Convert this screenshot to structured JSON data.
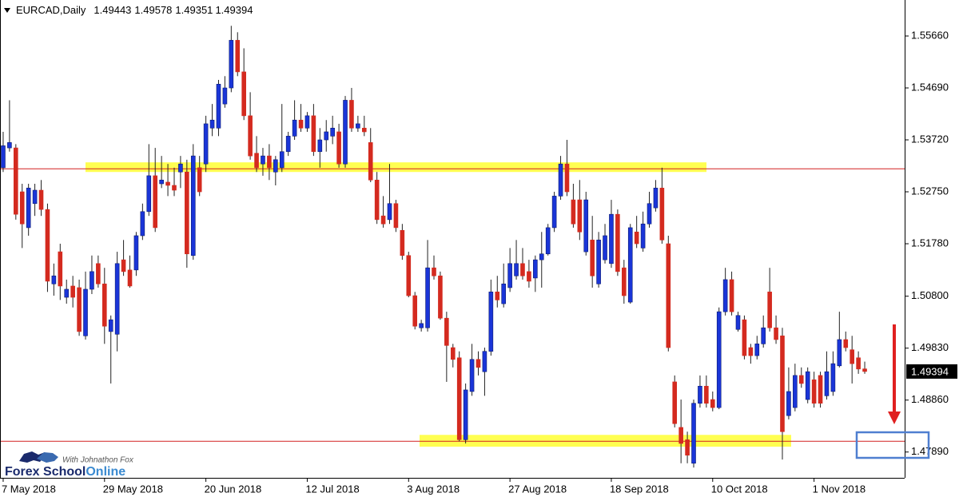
{
  "chart_data": {
    "type": "candlestick",
    "title": "EURCAD,Daily",
    "header_values": [
      1.49443,
      1.49578,
      1.49351,
      1.49394
    ],
    "last_price": 1.49394,
    "up_color": "#1a35d8",
    "down_color": "#d42a1f",
    "ylim": [
      1.47408,
      1.56332
    ],
    "yticks": [
      {
        "value": 1.5566,
        "label": "1.55660"
      },
      {
        "value": 1.5469,
        "label": "1.54690"
      },
      {
        "value": 1.5372,
        "label": "1.53720"
      },
      {
        "value": 1.5275,
        "label": "1.52750"
      },
      {
        "value": 1.5178,
        "label": "1.51780"
      },
      {
        "value": 1.508,
        "label": "1.50800"
      },
      {
        "value": 1.4983,
        "label": "1.49830"
      },
      {
        "value": 1.4886,
        "label": "1.48860"
      },
      {
        "value": 1.4789,
        "label": "1.47890"
      }
    ],
    "levels": [
      1.5318,
      1.4809
    ],
    "zones": [
      [
        1.5312,
        1.533
      ],
      [
        1.4799,
        1.4821
      ]
    ],
    "categories": [
      "7 May 2018",
      null,
      null,
      null,
      null,
      null,
      null,
      null,
      null,
      null,
      null,
      null,
      null,
      null,
      null,
      null,
      "29 May 2018",
      null,
      null,
      null,
      null,
      null,
      null,
      null,
      null,
      null,
      null,
      null,
      null,
      null,
      null,
      null,
      "20 Jun 2018",
      null,
      null,
      null,
      null,
      null,
      null,
      null,
      null,
      null,
      null,
      null,
      null,
      null,
      null,
      null,
      "12 Jul 2018",
      null,
      null,
      null,
      null,
      null,
      null,
      null,
      null,
      null,
      null,
      null,
      null,
      null,
      null,
      null,
      "3 Aug 2018",
      null,
      null,
      null,
      null,
      null,
      null,
      null,
      null,
      null,
      null,
      null,
      null,
      null,
      null,
      null,
      "27 Aug 2018",
      null,
      null,
      null,
      null,
      null,
      null,
      null,
      null,
      null,
      null,
      null,
      null,
      null,
      null,
      null,
      "18 Sep 2018",
      null,
      null,
      null,
      null,
      null,
      null,
      null,
      null,
      null,
      null,
      null,
      null,
      null,
      null,
      null,
      "10 Oct 2018",
      null,
      null,
      null,
      null,
      null,
      null,
      null,
      null,
      null,
      null,
      null,
      null,
      null,
      null,
      null,
      "1 Nov 2018",
      null,
      null,
      null,
      null,
      null,
      null,
      null,
      null
    ],
    "open": [
      1.532,
      1.5357,
      1.5357,
      1.5275,
      1.5208,
      1.5253,
      1.5278,
      1.5242,
      1.5103,
      1.5163,
      1.5078,
      1.5099,
      1.5096,
      1.5006,
      1.5093,
      1.5141,
      1.5103,
      1.5014,
      1.5009,
      1.5148,
      1.5129,
      1.5129,
      1.5193,
      1.5238,
      1.5305,
      1.529,
      1.5293,
      1.5287,
      1.5312,
      1.5312,
      1.5156,
      1.532,
      1.5327,
      1.5394,
      1.5394,
      1.5439,
      1.5469,
      1.5558,
      1.5499,
      1.5417,
      1.5347,
      1.5327,
      1.5342,
      1.5312,
      1.532,
      1.535,
      1.5379,
      1.5409,
      1.5394,
      1.5417,
      1.535,
      1.5372,
      1.5379,
      1.5387,
      1.5327,
      1.5446,
      1.5394,
      1.5394,
      1.5367,
      1.5297,
      1.523,
      1.5223,
      1.5253,
      1.5203,
      1.5156,
      1.5081,
      1.5021,
      1.5021,
      1.5133,
      1.5118,
      1.5039,
      1.4984,
      1.4965,
      1.4812,
      1.4902,
      1.4962,
      1.4939,
      1.4977,
      1.5088,
      1.5066,
      1.5096,
      1.5118,
      1.5141,
      1.5126,
      1.5114,
      1.5148,
      1.5159,
      1.5208,
      1.5267,
      1.5327,
      1.526,
      1.526,
      1.5163,
      1.5185,
      1.5103,
      1.5148,
      1.5141,
      1.5233,
      1.5133,
      1.5069,
      1.52,
      1.517,
      1.5215,
      1.5245,
      1.5282,
      1.5178,
      1.492,
      1.4835,
      1.4812,
      1.4768,
      1.488,
      1.4912,
      1.4887,
      1.4872,
      1.5051,
      1.5111,
      1.5018,
      1.5036,
      1.4984,
      1.4969,
      1.4991,
      1.5088,
      1.5021,
      1.5006,
      1.4857,
      1.4872,
      1.4932,
      1.4887,
      1.4924,
      1.4932,
      1.4894,
      1.4902,
      1.495,
      1.4999,
      1.498,
      1.4965,
      1.49443
    ],
    "high": [
      1.5387,
      1.5446,
      1.5364,
      1.529,
      1.529,
      1.529,
      1.5297,
      1.5253,
      1.5141,
      1.5178,
      1.5111,
      1.5118,
      1.5111,
      1.5126,
      1.5156,
      1.5156,
      1.5133,
      1.5044,
      1.5163,
      1.5185,
      1.5156,
      1.52,
      1.5253,
      1.5364,
      1.5357,
      1.5342,
      1.5327,
      1.532,
      1.5342,
      1.5335,
      1.5364,
      1.5342,
      1.5417,
      1.5439,
      1.5484,
      1.5491,
      1.5585,
      1.5573,
      1.5543,
      1.5461,
      1.5379,
      1.5357,
      1.5364,
      1.5342,
      1.5439,
      1.5387,
      1.5446,
      1.5439,
      1.5424,
      1.5439,
      1.5394,
      1.5409,
      1.5417,
      1.5402,
      1.5454,
      1.5469,
      1.5417,
      1.5417,
      1.5394,
      1.5312,
      1.5267,
      1.5327,
      1.526,
      1.5215,
      1.5163,
      1.5088,
      1.5036,
      1.5185,
      1.5156,
      1.5126,
      1.5051,
      1.4991,
      1.4977,
      1.4917,
      1.4991,
      1.4977,
      1.4984,
      1.5111,
      1.5118,
      1.5141,
      1.517,
      1.5185,
      1.517,
      1.5148,
      1.5156,
      1.52,
      1.5215,
      1.5275,
      1.5342,
      1.5372,
      1.529,
      1.5297,
      1.5275,
      1.523,
      1.52,
      1.5215,
      1.526,
      1.5242,
      1.5148,
      1.5215,
      1.523,
      1.5238,
      1.5275,
      1.5297,
      1.532,
      1.5193,
      1.4932,
      1.4887,
      1.4827,
      1.4887,
      1.4932,
      1.4932,
      1.4902,
      1.5059,
      1.5133,
      1.5126,
      1.5051,
      1.5044,
      1.4991,
      1.5006,
      1.5044,
      1.5133,
      1.5044,
      1.5021,
      1.4947,
      1.4954,
      1.4947,
      1.4947,
      1.4939,
      1.4939,
      1.4977,
      1.4977,
      1.5051,
      1.5014,
      1.5006,
      1.4977,
      1.49578
    ],
    "low": [
      1.5312,
      1.535,
      1.5223,
      1.517,
      1.5193,
      1.523,
      1.523,
      1.5088,
      1.5081,
      1.5073,
      1.5066,
      1.5059,
      1.5006,
      1.4999,
      1.5084,
      1.5096,
      1.4991,
      1.4917,
      1.4977,
      1.5118,
      1.5096,
      1.5118,
      1.5185,
      1.523,
      1.52,
      1.5282,
      1.5267,
      1.5267,
      1.5282,
      1.5133,
      1.5148,
      1.5267,
      1.5312,
      1.5379,
      1.5379,
      1.5432,
      1.5461,
      1.5491,
      1.5409,
      1.5335,
      1.5312,
      1.5305,
      1.5297,
      1.5287,
      1.5312,
      1.5342,
      1.5372,
      1.5387,
      1.5387,
      1.5342,
      1.532,
      1.535,
      1.5364,
      1.532,
      1.532,
      1.5387,
      1.5387,
      1.5379,
      1.5293,
      1.5215,
      1.5208,
      1.5215,
      1.52,
      1.5148,
      1.5078,
      1.5018,
      1.5014,
      1.5014,
      1.5111,
      1.5036,
      1.492,
      1.4947,
      1.4809,
      1.4805,
      1.4894,
      1.4932,
      1.4894,
      1.4969,
      1.5059,
      1.5059,
      1.5088,
      1.5111,
      1.5111,
      1.5096,
      1.5088,
      1.5096,
      1.5156,
      1.52,
      1.526,
      1.5267,
      1.5208,
      1.5185,
      1.5156,
      1.5096,
      1.5096,
      1.5141,
      1.5133,
      1.5118,
      1.5066,
      1.5066,
      1.517,
      1.5163,
      1.5208,
      1.5238,
      1.5178,
      1.4977,
      1.4835,
      1.4768,
      1.4768,
      1.476,
      1.4872,
      1.4872,
      1.4865,
      1.4869,
      1.5044,
      1.5044,
      1.5014,
      1.4962,
      1.4954,
      1.4962,
      1.4984,
      1.5014,
      1.4991,
      1.4775,
      1.485,
      1.4865,
      1.4909,
      1.488,
      1.4872,
      1.4872,
      1.4887,
      1.4894,
      1.4947,
      1.4977,
      1.4917,
      1.4935,
      1.49351
    ],
    "close": [
      1.5361,
      1.5367,
      1.5233,
      1.5215,
      1.5282,
      1.5278,
      1.5242,
      1.5108,
      1.5118,
      1.5099,
      1.5093,
      1.5078,
      1.5014,
      1.5093,
      1.5126,
      1.5103,
      1.5024,
      1.5036,
      1.5141,
      1.5126,
      1.5099,
      1.5193,
      1.5238,
      1.5305,
      1.5208,
      1.5297,
      1.5287,
      1.5278,
      1.5327,
      1.5159,
      1.5342,
      1.5275,
      1.5402,
      1.5409,
      1.5476,
      1.5469,
      1.5558,
      1.5499,
      1.5417,
      1.5342,
      1.532,
      1.5342,
      1.532,
      1.5335,
      1.535,
      1.5379,
      1.5409,
      1.5394,
      1.5417,
      1.535,
      1.5372,
      1.5387,
      1.5394,
      1.5327,
      1.5446,
      1.5394,
      1.5402,
      1.5387,
      1.5297,
      1.5223,
      1.5215,
      1.5253,
      1.5208,
      1.5156,
      1.5081,
      1.5024,
      1.5029,
      1.5133,
      1.5118,
      1.5039,
      1.4988,
      1.4962,
      1.4812,
      1.4905,
      1.4962,
      1.4947,
      1.4977,
      1.5088,
      1.5073,
      1.5103,
      1.5141,
      1.5141,
      1.5118,
      1.5108,
      1.5148,
      1.5159,
      1.5208,
      1.5267,
      1.5327,
      1.5275,
      1.5215,
      1.52,
      1.526,
      1.5118,
      1.5185,
      1.5193,
      1.5233,
      1.5126,
      1.5081,
      1.5208,
      1.5178,
      1.5215,
      1.5253,
      1.5282,
      1.5185,
      1.4984,
      1.4842,
      1.4805,
      1.4783,
      1.488,
      1.4912,
      1.488,
      1.4872,
      1.5051,
      1.5111,
      1.5051,
      1.5044,
      1.4969,
      1.4969,
      1.4991,
      1.5021,
      1.5021,
      1.4999,
      1.4827,
      1.4902,
      1.4932,
      1.4917,
      1.4939,
      1.488,
      1.488,
      1.4939,
      1.4954,
      1.4999,
      1.4984,
      1.4954,
      1.4944,
      1.49394
    ]
  },
  "branding": {
    "name_main": "Forex School",
    "name_accent": "Online",
    "tagline": "With Johnathon Fox"
  }
}
